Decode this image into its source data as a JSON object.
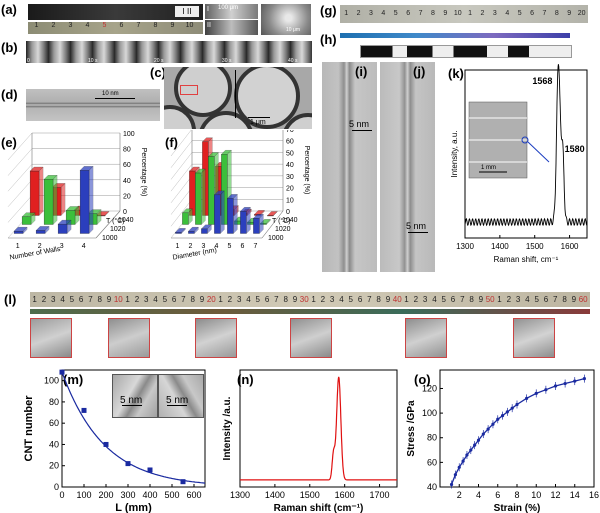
{
  "panels": {
    "a": "(a)",
    "b": "(b)",
    "c": "(c)",
    "d": "(d)",
    "e": "(e)",
    "f": "(f)",
    "g": "(g)",
    "h": "(h)",
    "i": "(i)",
    "j": "(j)",
    "k": "(k)",
    "l": "(l)",
    "m": "(m)",
    "n": "(n)",
    "o": "(o)"
  },
  "a": {
    "roman1": "I",
    "roman2": "II",
    "scale1": "100 μm",
    "scale2": "10 μm",
    "ruler_ticks": [
      "1",
      "2",
      "3",
      "4",
      "5",
      "6",
      "7",
      "8",
      "9",
      "10"
    ]
  },
  "b": {
    "marks": [
      "0",
      "10 s",
      "20 s",
      "30 s",
      "40 s"
    ]
  },
  "c": {
    "scale": "1 μm"
  },
  "d": {
    "scale": "10 nm"
  },
  "i": {
    "scale": "5 nm"
  },
  "j": {
    "scale": "5 nm"
  },
  "g": {
    "ruler": [
      "1",
      "2",
      "3",
      "4",
      "5",
      "6",
      "7",
      "8",
      "9",
      "10",
      "1",
      "2",
      "3",
      "4",
      "5",
      "6",
      "7",
      "8",
      "9",
      "20"
    ]
  },
  "k": {
    "scale": "1 mm"
  },
  "l": {
    "ruler": [
      "1",
      "2",
      "3",
      "4",
      "5",
      "6",
      "7",
      "8",
      "9",
      "10",
      "1",
      "2",
      "3",
      "4",
      "5",
      "6",
      "7",
      "8",
      "9",
      "20",
      "1",
      "2",
      "3",
      "4",
      "5",
      "6",
      "7",
      "8",
      "9",
      "30",
      "1",
      "2",
      "3",
      "4",
      "5",
      "6",
      "7",
      "8",
      "9",
      "40",
      "1",
      "2",
      "3",
      "4",
      "5",
      "6",
      "7",
      "8",
      "9",
      "50",
      "1",
      "2",
      "3",
      "4",
      "5",
      "6",
      "7",
      "8",
      "9",
      "60"
    ]
  },
  "m": {
    "inset_scales": [
      "5 nm",
      "5 nm"
    ]
  },
  "colors": {
    "blue": "#2b3fbd",
    "green": "#3bbf3b",
    "red": "#e02020",
    "curve": "#1a2aa0",
    "raman_n": "#e01010"
  },
  "chart_data": [
    {
      "panel": "e",
      "type": "bar",
      "title": "",
      "xlabel": "Number of Walls",
      "ylabel": "Percentage (%)",
      "zlabel": "T (°C)",
      "categories": [
        "1",
        "2",
        "3",
        "4"
      ],
      "z_ticks": [
        "1000",
        "1020",
        "1040"
      ],
      "ylim": [
        0,
        100
      ],
      "y_ticks": [
        "0",
        "20",
        "40",
        "60",
        "80",
        "100"
      ],
      "series": [
        {
          "name": "1040",
          "values": [
            57,
            36,
            7,
            0
          ]
        },
        {
          "name": "1020",
          "values": [
            10,
            58,
            18,
            14
          ]
        },
        {
          "name": "1000",
          "values": [
            3,
            4,
            12,
            81
          ]
        }
      ]
    },
    {
      "panel": "f",
      "type": "bar",
      "title": "",
      "xlabel": "Diameter (nm)",
      "ylabel": "Percentage (%)",
      "zlabel": "T (°C)",
      "categories": [
        "1",
        "2",
        "3",
        "4",
        "5",
        "6",
        "7"
      ],
      "z_ticks": [
        "1000",
        "1020",
        "1040"
      ],
      "ylim": [
        0,
        70
      ],
      "y_ticks": [
        "0",
        "10",
        "20",
        "30",
        "40",
        "50",
        "60",
        "70"
      ],
      "series": [
        {
          "name": "1040",
          "values": [
            38,
            63,
            42,
            5,
            2,
            1,
            0
          ]
        },
        {
          "name": "1020",
          "values": [
            10,
            44,
            58,
            60,
            3,
            2,
            1
          ]
        },
        {
          "name": "1000",
          "values": [
            1,
            2,
            4,
            33,
            30,
            19,
            13
          ]
        }
      ]
    },
    {
      "panel": "k",
      "type": "line",
      "title": "",
      "xlabel": "Raman shift, cm⁻¹",
      "ylabel": "Intensity, a.u.",
      "xlim": [
        1300,
        1650
      ],
      "x_ticks": [
        "1300",
        "1400",
        "1500",
        "1600"
      ],
      "annotations": [
        "1568",
        "1580"
      ],
      "peaks": [
        {
          "x": 1568,
          "y": 1.0,
          "w": 5
        },
        {
          "x": 1580,
          "y": 0.45,
          "w": 4
        }
      ]
    },
    {
      "panel": "m",
      "type": "scatter",
      "title": "",
      "xlabel": "L (mm)",
      "ylabel": "CNT number",
      "xlim": [
        0,
        650
      ],
      "ylim": [
        0,
        110
      ],
      "x_ticks": [
        "0",
        "100",
        "200",
        "300",
        "400",
        "500",
        "600"
      ],
      "y_ticks": [
        "0",
        "20",
        "40",
        "60",
        "80",
        "100"
      ],
      "x": [
        0,
        100,
        200,
        300,
        400,
        550
      ],
      "y": [
        108,
        72,
        40,
        22,
        16,
        5
      ],
      "fit": {
        "type": "exponential",
        "a": 108,
        "k": 0.0052
      }
    },
    {
      "panel": "n",
      "type": "line",
      "title": "",
      "xlabel": "Raman shift (cm⁻¹)",
      "ylabel": "Intensity /a.u.",
      "xlim": [
        1300,
        1750
      ],
      "x_ticks": [
        "1300",
        "1400",
        "1500",
        "1600",
        "1700"
      ],
      "peaks": [
        {
          "x": 1583,
          "y": 1.0,
          "w": 6
        },
        {
          "x": 1568,
          "y": 0.25,
          "w": 4
        }
      ]
    },
    {
      "panel": "o",
      "type": "line",
      "title": "",
      "xlabel": "Strain (%)",
      "ylabel": "Stress /GPa",
      "xlim": [
        0,
        16
      ],
      "ylim": [
        40,
        135
      ],
      "x_ticks": [
        "2",
        "4",
        "6",
        "8",
        "10",
        "12",
        "14",
        "16"
      ],
      "y_ticks": [
        "40",
        "60",
        "80",
        "100",
        "120"
      ],
      "x": [
        1.2,
        1.6,
        2.0,
        2.4,
        2.8,
        3.2,
        3.6,
        4.0,
        4.5,
        5.0,
        5.5,
        6.0,
        6.5,
        7.0,
        7.5,
        8.0,
        9.0,
        10.0,
        11.0,
        12.0,
        13.0,
        14.0,
        15.0
      ],
      "y": [
        42,
        50,
        56,
        61,
        66,
        70,
        74,
        78,
        83,
        87,
        91,
        95,
        98,
        101,
        104,
        107,
        112,
        116,
        119,
        122,
        124,
        126,
        128
      ]
    }
  ]
}
